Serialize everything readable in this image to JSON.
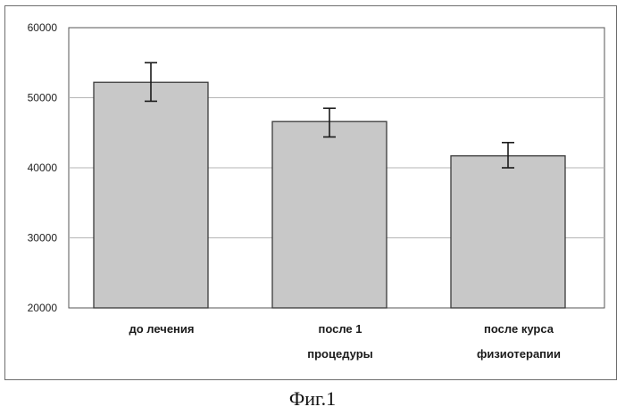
{
  "chart_data": {
    "type": "bar",
    "categories": [
      [
        "до лечения"
      ],
      [
        "после 1",
        "процедуры"
      ],
      [
        "после курса",
        "физиотерапии"
      ]
    ],
    "values": [
      52200,
      46600,
      41700
    ],
    "error_upper": [
      55000,
      48500,
      43600
    ],
    "error_lower": [
      49500,
      44400,
      40000
    ],
    "y_ticks": [
      "20000",
      "30000",
      "40000",
      "50000",
      "60000"
    ],
    "ylim": [
      20000,
      60000
    ],
    "grid": true,
    "colors": {
      "bar": "#c8c8c8",
      "bar_edge": "#3a3a3a",
      "grid": "#b5b5b5",
      "axis": "#555555"
    }
  },
  "caption": "Фиг.1"
}
